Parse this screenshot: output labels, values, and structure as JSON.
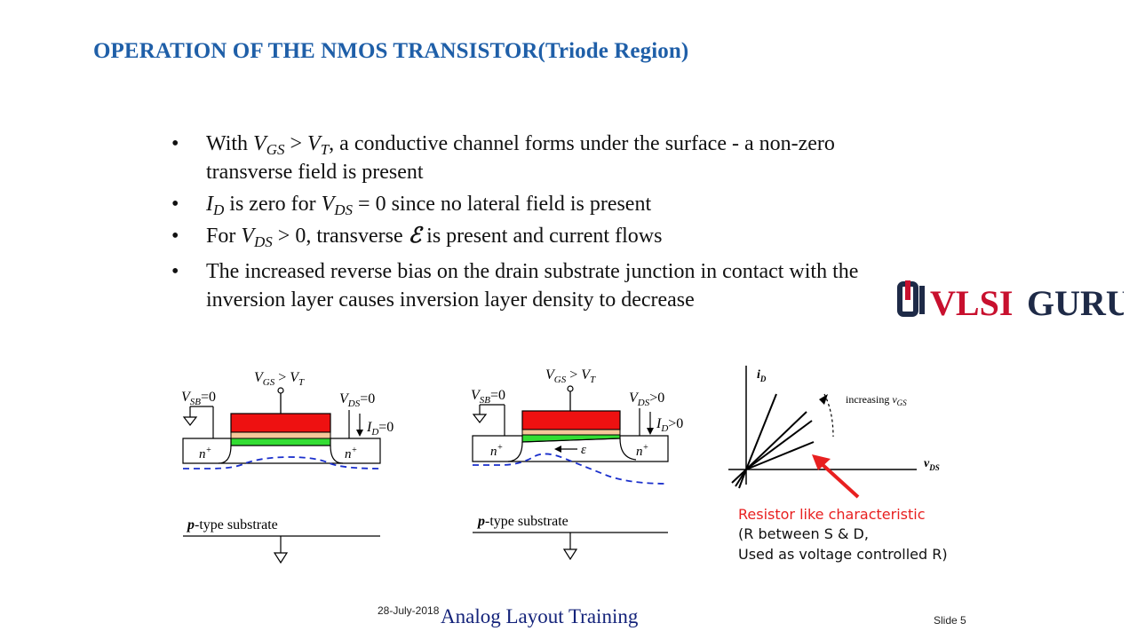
{
  "slide": {
    "title": "OPERATION OF THE NMOS TRANSISTOR(Triode Region)",
    "date": "28-July-2018",
    "footer_title": "Analog Layout Training",
    "slide_number": "Slide 5"
  },
  "bullets": {
    "b1_a": "With ",
    "b1_vgs": "V",
    "b1_vgs_sub": "GS",
    "b1_gt": " > ",
    "b1_vt": "V",
    "b1_vt_sub": "T",
    "b1_rest": ", a conductive channel forms under the surface - a non-zero transverse field is present",
    "b2_id": "I",
    "b2_id_sub": "D",
    "b2_mid": " is zero for ",
    "b2_vds": "V",
    "b2_vds_sub": "DS",
    "b2_rest": " = 0 since no lateral field is present",
    "b3_a": "For ",
    "b3_vds": "V",
    "b3_vds_sub": "DS",
    "b3_mid": " > 0, transverse ",
    "b3_e": "ℰ",
    "b3_rest": " is present and current flows",
    "b4": "The increased reverse bias on the drain substrate junction in contact with the inversion layer causes inversion layer density to decrease"
  },
  "logo": {
    "text_a": "VLSI",
    "text_b": "GURU",
    "color": "#c8102e",
    "dark": "#1e2a47"
  },
  "diagram1": {
    "vgs": "V",
    "vgs_sub": "GS",
    "gt": " > ",
    "vt": "V",
    "vt_sub": "T",
    "vsb": "V",
    "vsb_sub": "SB",
    "vsb_val": "=0",
    "vds": "V",
    "vds_sub": "DS",
    "vds_val": "=0",
    "id": "I",
    "id_sub": "D",
    "id_val": "=0",
    "n_left": "n",
    "n_right": "n",
    "plus": "+",
    "substrate_p": "p",
    "substrate_rest": "-type substrate"
  },
  "diagram2": {
    "vgs": "V",
    "vgs_sub": "GS",
    "gt": " > ",
    "vt": "V",
    "vt_sub": "T",
    "vsb": "V",
    "vsb_sub": "SB",
    "vsb_val": "=0",
    "vds": "V",
    "vds_sub": "DS",
    "vds_val": ">0",
    "id": "I",
    "id_sub": "D",
    "id_val": ">0",
    "field": "ε",
    "n_left": "n",
    "n_right": "n",
    "plus": "+",
    "substrate_p": "p",
    "substrate_rest": "-type substrate"
  },
  "graph": {
    "y_axis": "i",
    "y_sub": "D",
    "x_axis": "v",
    "x_sub": "DS",
    "increasing": "increasing ",
    "inc_v": "v",
    "inc_sub": "GS",
    "note_red": "Resistor like characteristic",
    "note_line2": "(R between S & D,",
    "note_line3": "Used as voltage controlled R)"
  },
  "colors": {
    "title": "#1f5fa8",
    "gate": "#ee1111",
    "channel": "#33dd33",
    "oxide": "#f6c79a",
    "depletion": "#1a2fcc",
    "arrow": "#e82020"
  }
}
